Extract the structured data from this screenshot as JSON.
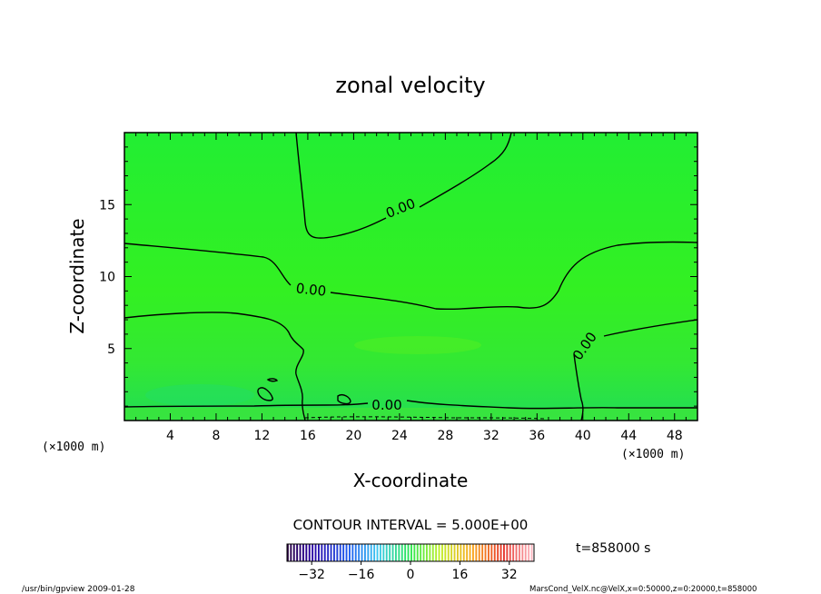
{
  "chart_data": {
    "type": "contour",
    "title": "zonal velocity",
    "xlabel": "X-coordinate",
    "ylabel": "Z-coordinate",
    "x_unit": "(×1000 m)",
    "y_unit": "(×1000 m)",
    "xlim": [
      0,
      50
    ],
    "ylim": [
      0,
      20
    ],
    "x_ticks": [
      4,
      8,
      12,
      16,
      20,
      24,
      28,
      32,
      36,
      40,
      44,
      48
    ],
    "y_ticks": [
      5,
      10,
      15
    ],
    "contour_labels": [
      "0.00",
      "0.00",
      "0.00",
      "0.00"
    ],
    "contour_interval": "CONTOUR INTERVAL = 5.000E+00",
    "time": "t=858000 s",
    "colorbar": {
      "min": -40,
      "max": 40,
      "ticks": [
        -32,
        -16,
        0,
        16,
        32
      ]
    },
    "footer_left": "/usr/bin/gpview  2009-01-28",
    "footer_right": "MarsCond_VelX.nc@VelX,x=0:50000,z=0:20000,t=858000",
    "colors": {
      "field": "#33ee22",
      "contour": "#000000"
    }
  }
}
